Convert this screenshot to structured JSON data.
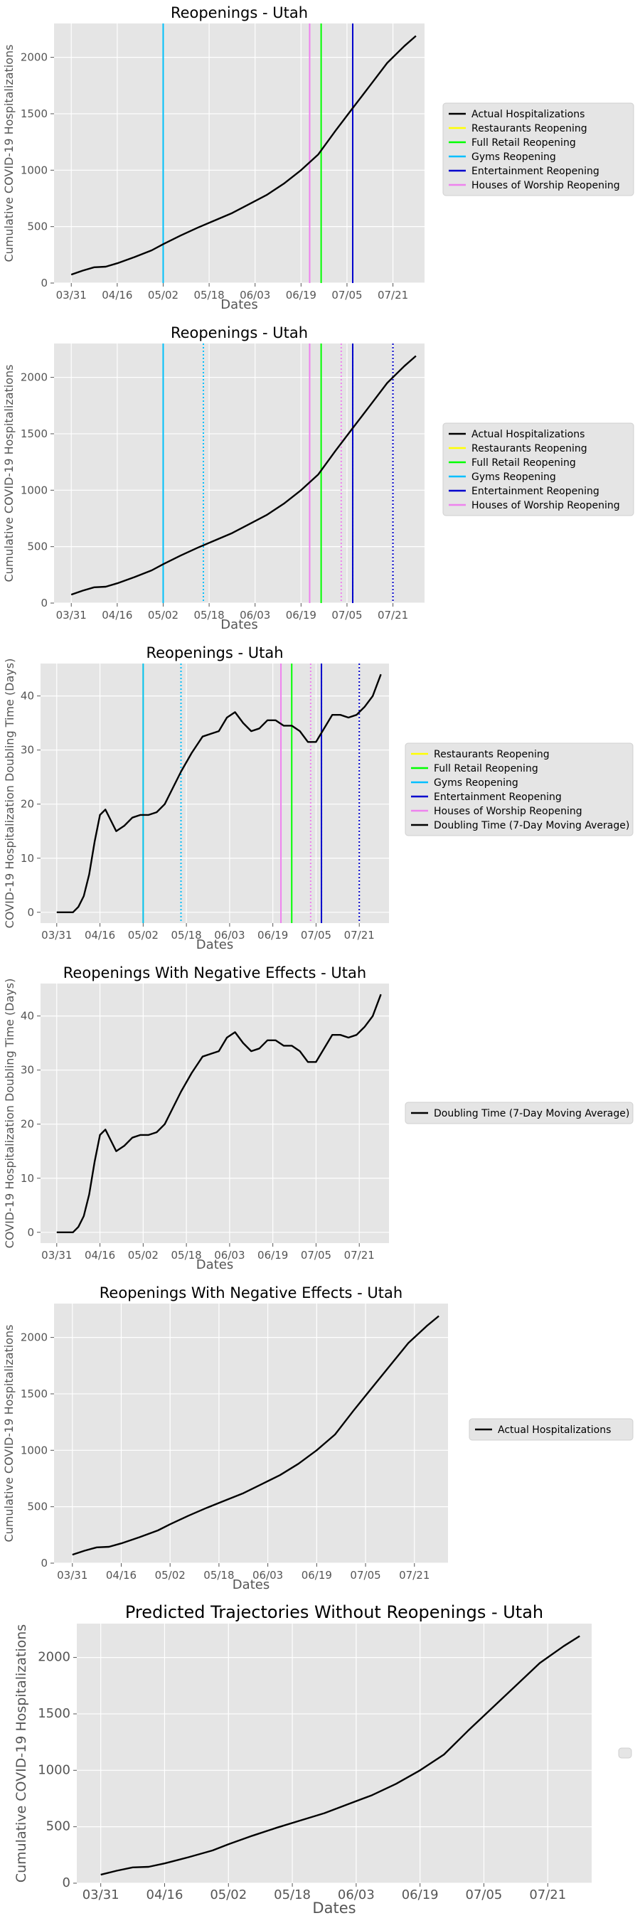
{
  "colors": {
    "panel_bg": "#e5e5e5",
    "grid": "#ffffff",
    "actual": "#000000",
    "restaurants": "#ffff00",
    "full_retail": "#00ff00",
    "gyms": "#00bfff",
    "entertainment": "#0000cd",
    "worship": "#ee82ee",
    "legend_bg": "#e5e5e5"
  },
  "chart_data": [
    {
      "type": "line",
      "title": "Reopenings - Utah",
      "xlabel": "Dates",
      "ylabel": "Cumulative COVID-19 Hospitalizations",
      "x_ticks": [
        "03/31",
        "04/16",
        "05/02",
        "05/18",
        "06/03",
        "06/19",
        "07/05",
        "07/21"
      ],
      "y_ticks": [
        "0",
        "500",
        "1000",
        "1500",
        "2000"
      ],
      "ylim": [
        0,
        2300
      ],
      "grid": true,
      "legend_position": "right",
      "legend": [
        "Actual Hospitalizations",
        "Restaurants Reopening",
        "Full Retail Reopening",
        "Gyms Reopening",
        "Entertainment Reopening",
        "Houses of Worship Reopening"
      ],
      "series": [
        {
          "name": "Actual Hospitalizations",
          "color": "actual",
          "x": [
            "03/31",
            "04/04",
            "04/08",
            "04/12",
            "04/16",
            "04/22",
            "04/28",
            "05/02",
            "05/08",
            "05/14",
            "05/20",
            "05/26",
            "06/01",
            "06/07",
            "06/13",
            "06/19",
            "06/25",
            "07/01",
            "07/07",
            "07/13",
            "07/19",
            "07/25",
            "07/29"
          ],
          "values": [
            75,
            110,
            140,
            145,
            175,
            230,
            290,
            345,
            420,
            490,
            555,
            620,
            700,
            780,
            880,
            1000,
            1140,
            1350,
            1550,
            1750,
            1950,
            2100,
            2190
          ]
        }
      ],
      "vlines": [
        {
          "label": "Restaurants Reopening",
          "x": "05/02",
          "color": "restaurants",
          "style": "solid"
        },
        {
          "label": "Gyms Reopening",
          "x": "05/02",
          "color": "gyms",
          "style": "solid"
        },
        {
          "label": "Houses of Worship Reopening",
          "x": "06/22",
          "color": "worship",
          "style": "solid"
        },
        {
          "label": "Full Retail Reopening",
          "x": "06/26",
          "color": "full_retail",
          "style": "solid"
        },
        {
          "label": "Entertainment Reopening",
          "x": "07/07",
          "color": "entertainment",
          "style": "solid"
        }
      ]
    },
    {
      "type": "line",
      "title": "Reopenings - Utah",
      "xlabel": "Dates",
      "ylabel": "Cumulative COVID-19 Hospitalizations",
      "x_ticks": [
        "03/31",
        "04/16",
        "05/02",
        "05/18",
        "06/03",
        "06/19",
        "07/05",
        "07/21"
      ],
      "y_ticks": [
        "0",
        "500",
        "1000",
        "1500",
        "2000"
      ],
      "ylim": [
        0,
        2300
      ],
      "grid": true,
      "legend_position": "right",
      "legend": [
        "Actual Hospitalizations",
        "Restaurants Reopening",
        "Full Retail Reopening",
        "Gyms Reopening",
        "Entertainment Reopening",
        "Houses of Worship Reopening"
      ],
      "series": [
        {
          "name": "Actual Hospitalizations",
          "color": "actual",
          "x": [
            "03/31",
            "04/04",
            "04/08",
            "04/12",
            "04/16",
            "04/22",
            "04/28",
            "05/02",
            "05/08",
            "05/14",
            "05/20",
            "05/26",
            "06/01",
            "06/07",
            "06/13",
            "06/19",
            "06/25",
            "07/01",
            "07/07",
            "07/13",
            "07/19",
            "07/25",
            "07/29"
          ],
          "values": [
            75,
            110,
            140,
            145,
            175,
            230,
            290,
            345,
            420,
            490,
            555,
            620,
            700,
            780,
            880,
            1000,
            1140,
            1350,
            1550,
            1750,
            1950,
            2100,
            2190
          ]
        }
      ],
      "vlines": [
        {
          "label": "Restaurants Reopening",
          "x": "05/02",
          "color": "restaurants",
          "style": "solid"
        },
        {
          "label": "Gyms Reopening",
          "x": "05/02",
          "color": "gyms",
          "style": "solid"
        },
        {
          "label": "Restaurants Reopening",
          "x": "05/16",
          "color": "restaurants",
          "style": "dotted"
        },
        {
          "label": "Gyms Reopening",
          "x": "05/16",
          "color": "gyms",
          "style": "dotted"
        },
        {
          "label": "Houses of Worship Reopening",
          "x": "06/22",
          "color": "worship",
          "style": "solid"
        },
        {
          "label": "Full Retail Reopening",
          "x": "06/26",
          "color": "full_retail",
          "style": "solid"
        },
        {
          "label": "Houses of Worship Reopening",
          "x": "07/03",
          "color": "worship",
          "style": "dotted"
        },
        {
          "label": "Full Retail Reopening",
          "x": "07/07",
          "color": "full_retail",
          "style": "dotted"
        },
        {
          "label": "Entertainment Reopening",
          "x": "07/07",
          "color": "entertainment",
          "style": "solid"
        },
        {
          "label": "Entertainment Reopening",
          "x": "07/21",
          "color": "entertainment",
          "style": "dotted"
        }
      ]
    },
    {
      "type": "line",
      "title": "Reopenings - Utah",
      "xlabel": "Dates",
      "ylabel": "COVID-19 Hospitalization Doubling Time (Days)",
      "x_ticks": [
        "03/31",
        "04/16",
        "05/02",
        "05/18",
        "06/03",
        "06/19",
        "07/05",
        "07/21"
      ],
      "y_ticks": [
        "0",
        "10",
        "20",
        "30",
        "40"
      ],
      "ylim": [
        -2,
        46
      ],
      "grid": true,
      "legend_position": "right",
      "legend": [
        "Restaurants Reopening",
        "Full Retail Reopening",
        "Gyms Reopening",
        "Entertainment Reopening",
        "Houses of Worship Reopening",
        "Doubling Time (7-Day Moving Average)"
      ],
      "series": [
        {
          "name": "Doubling Time (7-Day Moving Average)",
          "color": "actual",
          "x": [
            "03/31",
            "04/03",
            "04/06",
            "04/08",
            "04/10",
            "04/12",
            "04/14",
            "04/16",
            "04/18",
            "04/20",
            "04/22",
            "04/25",
            "04/28",
            "05/01",
            "05/04",
            "05/07",
            "05/10",
            "05/13",
            "05/16",
            "05/20",
            "05/24",
            "05/27",
            "05/30",
            "06/02",
            "06/05",
            "06/08",
            "06/11",
            "06/14",
            "06/17",
            "06/20",
            "06/23",
            "06/26",
            "06/29",
            "07/02",
            "07/05",
            "07/08",
            "07/11",
            "07/14",
            "07/17",
            "07/20",
            "07/23",
            "07/26",
            "07/29"
          ],
          "values": [
            0,
            0,
            0,
            1,
            3,
            7,
            13,
            18,
            19,
            17,
            15,
            16,
            17.5,
            18,
            18,
            18.5,
            20,
            23,
            26,
            29.5,
            32.5,
            33,
            33.5,
            36,
            37,
            35,
            33.5,
            34,
            35.5,
            35.5,
            34.5,
            34.5,
            33.5,
            31.5,
            31.5,
            34,
            36.5,
            36.5,
            36,
            36.5,
            38,
            40,
            44
          ]
        }
      ],
      "vlines": [
        {
          "label": "Restaurants Reopening",
          "x": "05/02",
          "color": "restaurants",
          "style": "solid"
        },
        {
          "label": "Gyms Reopening",
          "x": "05/02",
          "color": "gyms",
          "style": "solid"
        },
        {
          "label": "Restaurants Reopening",
          "x": "05/16",
          "color": "restaurants",
          "style": "dotted"
        },
        {
          "label": "Gyms Reopening",
          "x": "05/16",
          "color": "gyms",
          "style": "dotted"
        },
        {
          "label": "Houses of Worship Reopening",
          "x": "06/22",
          "color": "worship",
          "style": "solid"
        },
        {
          "label": "Full Retail Reopening",
          "x": "06/26",
          "color": "full_retail",
          "style": "solid"
        },
        {
          "label": "Houses of Worship Reopening",
          "x": "07/03",
          "color": "worship",
          "style": "dotted"
        },
        {
          "label": "Full Retail Reopening",
          "x": "07/07",
          "color": "full_retail",
          "style": "dotted"
        },
        {
          "label": "Entertainment Reopening",
          "x": "07/07",
          "color": "entertainment",
          "style": "solid"
        },
        {
          "label": "Entertainment Reopening",
          "x": "07/21",
          "color": "entertainment",
          "style": "dotted"
        }
      ]
    },
    {
      "type": "line",
      "title": "Reopenings With Negative Effects - Utah",
      "xlabel": "Dates",
      "ylabel": "COVID-19 Hospitalization Doubling Time (Days)",
      "x_ticks": [
        "03/31",
        "04/16",
        "05/02",
        "05/18",
        "06/03",
        "06/19",
        "07/05",
        "07/21"
      ],
      "y_ticks": [
        "0",
        "10",
        "20",
        "30",
        "40"
      ],
      "ylim": [
        -2,
        46
      ],
      "grid": true,
      "legend_position": "right",
      "legend": [
        "Doubling Time (7-Day Moving Average)"
      ],
      "series": [
        {
          "name": "Doubling Time (7-Day Moving Average)",
          "color": "actual",
          "x": [
            "03/31",
            "04/03",
            "04/06",
            "04/08",
            "04/10",
            "04/12",
            "04/14",
            "04/16",
            "04/18",
            "04/20",
            "04/22",
            "04/25",
            "04/28",
            "05/01",
            "05/04",
            "05/07",
            "05/10",
            "05/13",
            "05/16",
            "05/20",
            "05/24",
            "05/27",
            "05/30",
            "06/02",
            "06/05",
            "06/08",
            "06/11",
            "06/14",
            "06/17",
            "06/20",
            "06/23",
            "06/26",
            "06/29",
            "07/02",
            "07/05",
            "07/08",
            "07/11",
            "07/14",
            "07/17",
            "07/20",
            "07/23",
            "07/26",
            "07/29"
          ],
          "values": [
            0,
            0,
            0,
            1,
            3,
            7,
            13,
            18,
            19,
            17,
            15,
            16,
            17.5,
            18,
            18,
            18.5,
            20,
            23,
            26,
            29.5,
            32.5,
            33,
            33.5,
            36,
            37,
            35,
            33.5,
            34,
            35.5,
            35.5,
            34.5,
            34.5,
            33.5,
            31.5,
            31.5,
            34,
            36.5,
            36.5,
            36,
            36.5,
            38,
            40,
            44
          ]
        }
      ],
      "vlines": []
    },
    {
      "type": "line",
      "title": "Reopenings With Negative Effects - Utah",
      "xlabel": "Dates",
      "ylabel": "Cumulative COVID-19 Hospitalizations",
      "x_ticks": [
        "03/31",
        "04/16",
        "05/02",
        "05/18",
        "06/03",
        "06/19",
        "07/05",
        "07/21"
      ],
      "y_ticks": [
        "0",
        "500",
        "1000",
        "1500",
        "2000"
      ],
      "ylim": [
        0,
        2300
      ],
      "grid": true,
      "legend_position": "right",
      "legend": [
        "Actual Hospitalizations"
      ],
      "series": [
        {
          "name": "Actual Hospitalizations",
          "color": "actual",
          "x": [
            "03/31",
            "04/04",
            "04/08",
            "04/12",
            "04/16",
            "04/22",
            "04/28",
            "05/02",
            "05/08",
            "05/14",
            "05/20",
            "05/26",
            "06/01",
            "06/07",
            "06/13",
            "06/19",
            "06/25",
            "07/01",
            "07/07",
            "07/13",
            "07/19",
            "07/25",
            "07/29"
          ],
          "values": [
            75,
            110,
            140,
            145,
            175,
            230,
            290,
            345,
            420,
            490,
            555,
            620,
            700,
            780,
            880,
            1000,
            1140,
            1350,
            1550,
            1750,
            1950,
            2100,
            2190
          ]
        }
      ],
      "vlines": []
    },
    {
      "type": "line",
      "title": "Predicted Trajectories Without Reopenings - Utah",
      "xlabel": "Dates",
      "ylabel": "Cumulative COVID-19 Hospitalizations",
      "x_ticks": [
        "03/31",
        "04/16",
        "05/02",
        "05/18",
        "06/03",
        "06/19",
        "07/05",
        "07/21"
      ],
      "y_ticks": [
        "0",
        "500",
        "1000",
        "1500",
        "2000"
      ],
      "ylim": [
        0,
        2300
      ],
      "grid": true,
      "legend_position": "right",
      "legend": [],
      "series": [
        {
          "name": "",
          "color": "actual",
          "x": [
            "03/31",
            "04/04",
            "04/08",
            "04/12",
            "04/16",
            "04/22",
            "04/28",
            "05/02",
            "05/08",
            "05/14",
            "05/20",
            "05/26",
            "06/01",
            "06/07",
            "06/13",
            "06/19",
            "06/25",
            "07/01",
            "07/07",
            "07/13",
            "07/19",
            "07/25",
            "07/29"
          ],
          "values": [
            75,
            110,
            140,
            145,
            175,
            230,
            290,
            345,
            420,
            490,
            555,
            620,
            700,
            780,
            880,
            1000,
            1140,
            1350,
            1550,
            1750,
            1950,
            2100,
            2190
          ]
        }
      ],
      "vlines": []
    }
  ]
}
